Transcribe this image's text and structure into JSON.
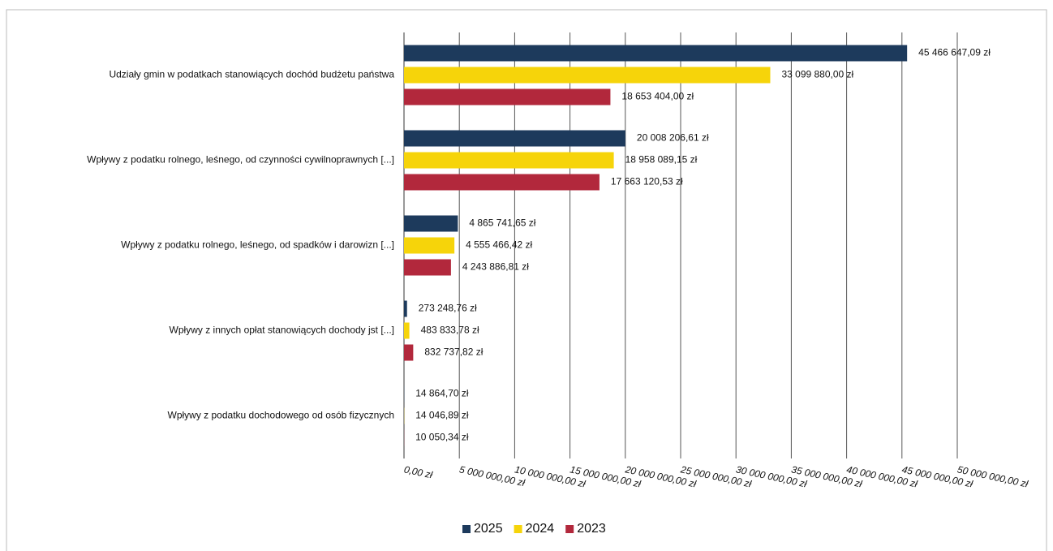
{
  "chart_data": {
    "type": "bar",
    "orientation": "horizontal",
    "categories": [
      "Udziały gmin w podatkach stanowiących dochód budżetu państwa",
      "Wpływy z podatku rolnego, leśnego, od czynności cywilnoprawnych [...]",
      "Wpływy z podatku rolnego, leśnego, od spadków i darowizn [...]",
      "Wpływy z innych opłat stanowiących dochody jst [...]",
      "Wpływy z podatku dochodowego od osób fizycznych"
    ],
    "series": [
      {
        "name": "2025",
        "color": "#1d3a5c",
        "values": [
          45466647.09,
          20008206.61,
          4865741.65,
          273248.76,
          14864.7
        ],
        "value_labels": [
          "45 466 647,09 zł",
          "20 008 206,61 zł",
          "4 865 741,65 zł",
          "273 248,76 zł",
          "14 864,70 zł"
        ]
      },
      {
        "name": "2024",
        "color": "#f6d40a",
        "values": [
          33099880.0,
          18958089.15,
          4555466.42,
          483833.78,
          14046.89
        ],
        "value_labels": [
          "33 099 880,00 zł",
          "18 958 089,15 zł",
          "4 555 466,42 zł",
          "483 833,78 zł",
          "14 046,89 zł"
        ]
      },
      {
        "name": "2023",
        "color": "#b2283c",
        "values": [
          18653404.0,
          17663120.53,
          4243886.81,
          832737.82,
          10050.34
        ],
        "value_labels": [
          "18 653 404,00 zł",
          "17 663 120,53 zł",
          "4 243 886,81 zł",
          "832 737,82 zł",
          "10 050,34 zł"
        ]
      }
    ],
    "xlim": [
      0,
      50000000
    ],
    "xticks": [
      {
        "value": 0,
        "label": "0,00 zł"
      },
      {
        "value": 5000000,
        "label": "5 000 000,00 zł"
      },
      {
        "value": 10000000,
        "label": "10 000 000,00 zł"
      },
      {
        "value": 15000000,
        "label": "15 000 000,00 zł"
      },
      {
        "value": 20000000,
        "label": "20 000 000,00 zł"
      },
      {
        "value": 25000000,
        "label": "25 000 000,00 zł"
      },
      {
        "value": 30000000,
        "label": "30 000 000,00 zł"
      },
      {
        "value": 35000000,
        "label": "35 000 000,00 zł"
      },
      {
        "value": 40000000,
        "label": "40 000 000,00 zł"
      },
      {
        "value": 45000000,
        "label": "45 000 000,00 zł"
      },
      {
        "value": 50000000,
        "label": "50 000 000,00 zł"
      }
    ],
    "grid": true,
    "legend": "bottom"
  }
}
